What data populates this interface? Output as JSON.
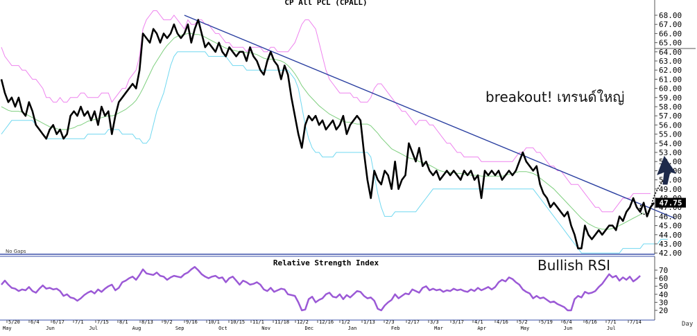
{
  "chart_data": [
    {
      "type": "line",
      "title": "CP All PCL (CPALL)",
      "ylim": [
        42,
        68
      ],
      "y_ticks": [
        "68.00",
        "67.00",
        "66.00",
        "65.00",
        "64.00",
        "63.00",
        "62.00",
        "61.00",
        "60.00",
        "59.00",
        "58.00",
        "57.00",
        "56.00",
        "55.00",
        "54.00",
        "53.00",
        "52.00",
        "51.00",
        "50.00",
        "49.00",
        "48.00",
        "47.00",
        "46.00",
        "45.00",
        "44.00",
        "43.00",
        "42.00"
      ],
      "last_price_label": "47.75",
      "no_gaps_label": "No Gaps",
      "x_date_labels": [
        "5/20",
        "6/4",
        "6/17",
        "7/1",
        "7/15",
        "8/1",
        "8/13",
        "9/2",
        "9/16",
        "10/1",
        "10/15",
        "11/1",
        "11/18",
        "12/2",
        "12/16",
        "1/2",
        "1/13",
        "2/3",
        "2/17",
        "3/3",
        "3/17",
        "4/1",
        "4/16",
        "5/2",
        "5/19",
        "6/4",
        "6/16",
        "7/1",
        "7/14"
      ],
      "x_month_labels": [
        "May",
        "Jun",
        "Jul",
        "Aug",
        "Sep",
        "Oct",
        "Nov",
        "Dec",
        "Jan",
        "Feb",
        "Mar",
        "Apr",
        "May",
        "Jun",
        "Jul"
      ],
      "x_axis_label": "Day",
      "series": [
        {
          "role": "price",
          "values": [
            61,
            59.5,
            58.5,
            59,
            58,
            59,
            57.5,
            57,
            58.5,
            57.5,
            56,
            55.5,
            55,
            54.5,
            55.5,
            56,
            55,
            55.5,
            54.5,
            55,
            57,
            57.5,
            57,
            58,
            57,
            57.5,
            56.5,
            57.5,
            56,
            58,
            57,
            57.5,
            55,
            57,
            58.5,
            59,
            59.5,
            60,
            60.5,
            60,
            62,
            66,
            65.5,
            65,
            66.5,
            66,
            65,
            66,
            65.5,
            66,
            67,
            66,
            65.5,
            66,
            67,
            65,
            66.5,
            67.5,
            66,
            64.5,
            65,
            64.5,
            64,
            65,
            64,
            63.5,
            64.5,
            64,
            63.5,
            64,
            64,
            63,
            64.5,
            63.5,
            63,
            62,
            61.5,
            63,
            64,
            63,
            62.5,
            61,
            62.5,
            61.5,
            59,
            57,
            55,
            53.5,
            56,
            57,
            56.5,
            57,
            56,
            56.5,
            55.5,
            56,
            56.5,
            55.5,
            56,
            57,
            55,
            56,
            56.5,
            57,
            56.5,
            53,
            50,
            48,
            51,
            50,
            49.5,
            51,
            50.5,
            49,
            52,
            49,
            50,
            50.5,
            54,
            53,
            52,
            53.5,
            51.5,
            52,
            51,
            50.5,
            51,
            50,
            50.5,
            51,
            50.5,
            51,
            50.5,
            50,
            51,
            50.5,
            51,
            50,
            50.5,
            48,
            51,
            50.5,
            51,
            50.5,
            51,
            50,
            50.5,
            51,
            50.5,
            51,
            52,
            53,
            52,
            51.5,
            51,
            51.5,
            49.5,
            48.5,
            48,
            47,
            47.5,
            47,
            46.5,
            46,
            46.5,
            45,
            44,
            42.5,
            42.5,
            45,
            44,
            43.5,
            44,
            44.5,
            44,
            44.5,
            45,
            45,
            44.5,
            46,
            45.5,
            46.5,
            47,
            48,
            47,
            46.5,
            47.5,
            46,
            47,
            47.5
          ]
        },
        {
          "role": "bollinger-upper",
          "values": [
            64.5,
            63.5,
            63,
            62.5,
            62.5,
            62.5,
            62,
            62,
            61.5,
            61,
            61,
            60.5,
            60,
            59,
            59,
            58.5,
            58.5,
            59,
            58.5,
            58.5,
            59,
            59,
            59,
            59.5,
            59.5,
            59,
            59,
            59,
            59,
            59.5,
            59.5,
            59.5,
            58.5,
            59,
            59.5,
            60,
            60,
            61,
            61.5,
            62,
            63.5,
            66.5,
            67.5,
            68,
            68.5,
            68.5,
            68,
            67.5,
            67.5,
            67.5,
            68,
            67.5,
            67,
            66.5,
            67.5,
            67,
            67,
            67.5,
            67.5,
            67,
            67,
            66.5,
            66,
            66,
            65.5,
            65,
            65,
            64.5,
            64.5,
            64.5,
            64.5,
            64,
            64.5,
            64.5,
            64.5,
            64.5,
            64,
            64,
            64.5,
            64.5,
            64,
            64,
            64,
            64,
            64.5,
            65,
            66,
            67,
            67.5,
            67.5,
            67,
            66.5,
            65,
            63.5,
            62,
            61,
            60.5,
            60,
            59.5,
            59.5,
            59.5,
            59.5,
            59,
            59,
            58.5,
            58.5,
            58.5,
            59,
            60,
            60.5,
            60.5,
            60,
            59.5,
            59,
            58.5,
            58,
            57.5,
            57.5,
            57,
            56.5,
            56,
            56.5,
            56.5,
            56.5,
            56,
            56,
            55.5,
            55,
            54.5,
            54,
            54,
            53.5,
            53,
            53,
            52.5,
            52.5,
            52.5,
            52.5,
            52.5,
            52,
            52,
            52,
            52,
            52,
            52,
            52,
            52,
            52,
            52,
            52.5,
            53,
            53,
            53.5,
            53.5,
            53.5,
            53,
            53,
            52.5,
            52,
            51.5,
            51.5,
            51,
            51,
            50.5,
            50,
            49.5,
            49.5,
            49.5,
            49,
            48.5,
            48,
            47.5,
            47,
            47,
            46.5,
            46.5,
            46.5,
            46.5,
            47,
            47.5,
            48,
            48,
            48,
            48.5,
            48.5,
            48.5,
            48.5,
            48.5,
            48.5
          ]
        },
        {
          "role": "bollinger-middle",
          "values": [
            58,
            57.8,
            57.6,
            57.5,
            57.5,
            57.5,
            57.4,
            57.2,
            57,
            56.8,
            56.6,
            56.4,
            56.2,
            56,
            55.8,
            55.7,
            55.6,
            55.5,
            55.5,
            55.5,
            55.6,
            55.7,
            55.9,
            56,
            56.2,
            56.4,
            56.5,
            56.6,
            56.7,
            56.8,
            56.9,
            57,
            57,
            57.1,
            57.3,
            57.5,
            57.7,
            58,
            58.3,
            58.7,
            59.3,
            60,
            60.8,
            61.6,
            62.4,
            63,
            63.6,
            64.2,
            64.7,
            65.1,
            65.5,
            65.7,
            65.8,
            65.9,
            66,
            66,
            65.9,
            65.9,
            65.8,
            65.6,
            65.4,
            65.2,
            65,
            64.8,
            64.6,
            64.4,
            64.3,
            64.2,
            64.1,
            64,
            64,
            63.9,
            63.9,
            63.8,
            63.7,
            63.5,
            63.3,
            63.2,
            63.2,
            63.2,
            63.1,
            63,
            62.8,
            62.5,
            62.1,
            61.6,
            61,
            60.3,
            59.8,
            59.3,
            58.9,
            58.5,
            58.1,
            57.8,
            57.5,
            57.2,
            57,
            56.8,
            56.6,
            56.4,
            56.3,
            56.3,
            56.2,
            56.1,
            56.1,
            56.1,
            56.1,
            55.9,
            55.5,
            55.1,
            54.6,
            54.2,
            53.8,
            53.4,
            53.2,
            53,
            52.8,
            52.6,
            52.4,
            52.3,
            52.2,
            52,
            51.9,
            51.8,
            51.6,
            51.4,
            51.2,
            51,
            50.9,
            50.8,
            50.8,
            50.8,
            50.7,
            50.7,
            50.6,
            50.6,
            50.5,
            50.5,
            50.5,
            50.4,
            50.4,
            50.4,
            50.4,
            50.4,
            50.4,
            50.4,
            50.5,
            50.6,
            50.7,
            50.8,
            50.9,
            50.9,
            50.9,
            50.8,
            50.7,
            50.5,
            50.2,
            49.9,
            49.6,
            49.3,
            49,
            48.6,
            48.2,
            47.8,
            47.4,
            47,
            46.6,
            46.2,
            45.8,
            45.5,
            45.2,
            45,
            44.8,
            44.7,
            44.6,
            44.6,
            44.6,
            44.7,
            44.8,
            45,
            45.2,
            45.4,
            45.6,
            45.8,
            46,
            46.2,
            46.4
          ]
        },
        {
          "role": "bollinger-lower",
          "values": [
            55,
            55.5,
            56,
            56.5,
            56.5,
            56.5,
            56.5,
            56.5,
            56.5,
            56.5,
            56,
            55.5,
            55,
            54.5,
            54.5,
            54.5,
            54.5,
            54.5,
            54.5,
            54.5,
            54.5,
            54.5,
            54.5,
            54.5,
            54.5,
            55,
            55,
            55,
            55,
            55,
            55,
            55.5,
            55.5,
            55.5,
            55.5,
            55,
            55,
            55,
            55,
            54.5,
            54.5,
            54,
            54,
            54.5,
            56,
            57.5,
            58.5,
            59.5,
            61,
            62.5,
            63.5,
            64,
            64,
            64,
            64,
            64,
            64,
            64,
            64,
            64,
            63.5,
            63.5,
            63.5,
            63.5,
            63.5,
            63.5,
            63,
            62.5,
            62.5,
            62.5,
            62.5,
            62,
            62,
            62,
            62,
            62,
            62,
            62,
            62,
            62,
            62,
            62,
            62,
            62,
            61.5,
            61,
            60,
            58,
            56,
            54.5,
            53.5,
            53,
            53,
            52.5,
            52.5,
            52.5,
            52.5,
            53,
            53,
            53,
            53,
            53,
            53,
            53,
            53,
            53,
            53,
            52.5,
            50.5,
            48.5,
            47,
            46,
            46,
            46,
            46.5,
            46.5,
            46.5,
            46.5,
            46.5,
            46.5,
            46.5,
            47,
            47.5,
            48,
            48.5,
            49,
            49,
            49,
            49,
            49,
            49,
            49,
            49,
            49,
            49,
            49,
            49,
            49,
            49,
            49,
            49,
            49,
            49,
            49,
            49,
            49,
            49,
            49,
            49,
            49,
            49,
            49,
            49,
            49,
            49,
            48.5,
            48,
            47.5,
            47,
            46.5,
            46,
            45.5,
            45,
            44.5,
            44,
            43.5,
            43,
            42.5,
            42,
            42,
            42,
            42,
            42,
            42,
            42,
            42,
            42,
            42,
            42,
            42,
            42.5,
            42.5,
            42.5,
            42.5,
            42.5,
            42.5,
            43,
            43,
            43,
            43,
            43,
            43.5,
            43.5,
            43.5
          ]
        }
      ],
      "trendline": {
        "from": {
          "index": 53,
          "value": 68
        },
        "to": {
          "index": 195,
          "value": 45.8
        }
      }
    },
    {
      "type": "line",
      "title": "Relative Strength Index",
      "ylim": [
        15,
        76
      ],
      "y_ticks": [
        "70",
        "60",
        "50",
        "40",
        "30",
        "20"
      ],
      "series": [
        {
          "role": "rsi",
          "values": [
            52,
            57,
            52,
            48,
            47,
            44,
            46,
            45,
            49,
            44,
            42,
            47,
            51,
            47,
            48,
            46,
            47,
            44,
            38,
            40,
            36,
            35,
            32,
            35,
            39,
            42,
            44,
            41,
            46,
            43,
            47,
            50,
            52,
            45,
            48,
            55,
            57,
            60,
            62,
            58,
            64,
            71,
            66,
            65,
            64,
            67,
            63,
            62,
            58,
            61,
            63,
            62,
            61,
            65,
            67,
            71,
            74,
            70,
            65,
            62,
            60,
            62,
            63,
            60,
            61,
            55,
            60,
            62,
            57,
            52,
            57,
            55,
            52,
            53,
            55,
            52,
            46,
            44,
            48,
            43,
            45,
            47,
            46,
            40,
            39,
            38,
            30,
            20,
            21,
            34,
            37,
            30,
            33,
            35,
            40,
            42,
            37,
            36,
            40,
            34,
            39,
            36,
            40,
            44,
            43,
            38,
            35,
            36,
            32,
            22,
            20,
            26,
            30,
            33,
            40,
            35,
            38,
            41,
            40,
            46,
            44,
            42,
            48,
            50,
            45,
            47,
            45,
            46,
            43,
            45,
            44,
            47,
            45,
            46,
            44,
            43,
            46,
            44,
            48,
            45,
            47,
            49,
            46,
            49,
            55,
            58,
            56,
            61,
            59,
            55,
            52,
            46,
            43,
            41,
            35,
            38,
            35,
            36,
            33,
            30,
            31,
            28,
            26,
            24,
            20,
            20,
            34,
            38,
            36,
            43,
            41,
            42,
            44,
            49,
            53,
            59,
            65,
            61,
            63,
            57,
            61,
            58,
            62,
            56,
            59,
            63
          ]
        }
      ]
    }
  ],
  "annotations": {
    "breakout": "breakout! เทรนด์ใหญ่",
    "rsi": "Bullish RSI"
  },
  "colors": {
    "price": "#000000",
    "bollinger_upper": "#ee82ee",
    "bollinger_middle": "#7fcf7f",
    "bollinger_lower": "#70d8f0",
    "trendline": "#2a3fa0",
    "rsi": "#9b59d6",
    "panel_border": "#3a4fa8",
    "arrow": "#1e2a4a"
  }
}
